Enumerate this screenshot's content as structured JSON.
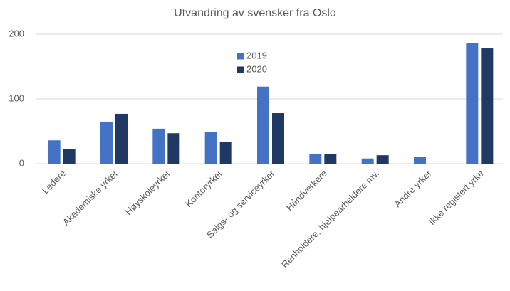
{
  "chart_data": {
    "type": "bar",
    "title": "Utvandring av svensker fra Oslo",
    "categories": [
      "Ledere",
      "Akademiske yrker",
      "Høyskoleyrker",
      "Kontoryrker",
      "Salgs- og serviceyrker",
      "Håndverkere",
      "Renholdere, hjelpearbeidere mv.",
      "Andre yrker",
      "Ikke registert yrke"
    ],
    "series": [
      {
        "name": "2019",
        "color": "#4472c4",
        "values": [
          36,
          64,
          54,
          49,
          119,
          15,
          8,
          11,
          186
        ]
      },
      {
        "name": "2020",
        "color": "#203864",
        "values": [
          23,
          77,
          47,
          34,
          78,
          15,
          13,
          null,
          178
        ]
      }
    ],
    "ylim": [
      0,
      200
    ],
    "yticks": [
      0,
      100,
      200
    ],
    "grid": true
  }
}
